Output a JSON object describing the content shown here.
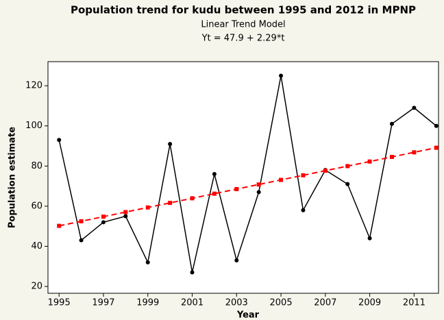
{
  "chart_data": {
    "type": "line",
    "title": "Population trend for kudu between 1995 and 2012 in MPNP",
    "subtitle": [
      "Linear Trend Model",
      "Yt = 47.9 + 2.29*t"
    ],
    "x_label": "Year",
    "y_label": "Population estimate",
    "x": [
      1995,
      1996,
      1997,
      1998,
      1999,
      2000,
      2001,
      2002,
      2003,
      2004,
      2005,
      2006,
      2007,
      2008,
      2009,
      2010,
      2011,
      2012
    ],
    "series": [
      {
        "color": "#000000",
        "marker": "circle",
        "dashed": false,
        "values": [
          93,
          43,
          52,
          55,
          32,
          91,
          27,
          76,
          33,
          67,
          125,
          58,
          78,
          71,
          44,
          101,
          109,
          100
        ]
      },
      {
        "color": "#ff0000",
        "marker": "square",
        "dashed": true,
        "values": [
          50.19,
          52.48,
          54.77,
          57.06,
          59.35,
          61.64,
          63.93,
          66.22,
          68.51,
          70.8,
          73.09,
          75.38,
          77.67,
          79.96,
          82.25,
          84.54,
          86.83,
          89.12
        ]
      }
    ],
    "xlim": [
      1994.5,
      2012.1
    ],
    "xticks": [
      1995,
      1997,
      1999,
      2001,
      2003,
      2005,
      2007,
      2009,
      2011
    ],
    "ylim": [
      16.6,
      132
    ],
    "yticks": [
      20,
      40,
      60,
      80,
      100,
      120
    ]
  }
}
